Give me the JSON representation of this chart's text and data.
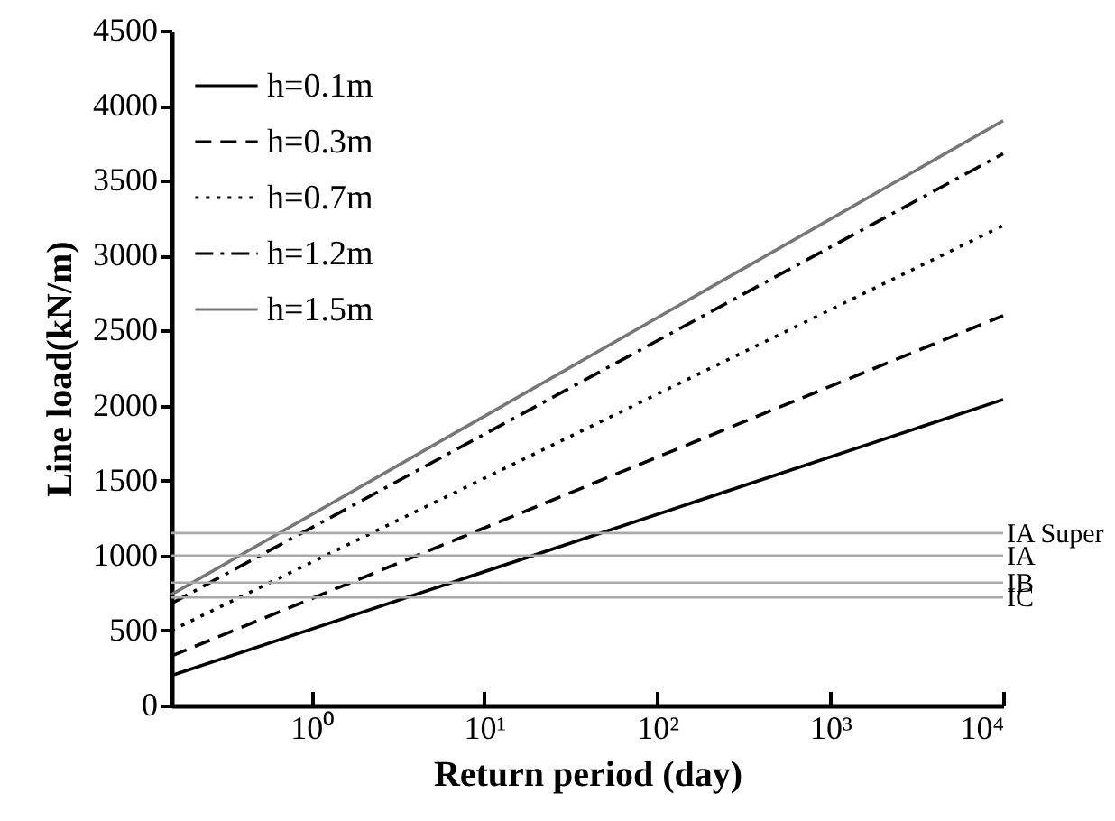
{
  "chart_data": {
    "type": "line",
    "xlabel": "Return period (day)",
    "ylabel": "Line load(kN/m)",
    "log": "x",
    "xlim": [
      0.155,
      10000
    ],
    "xticks": [
      {
        "value": 1,
        "label": "10⁰"
      },
      {
        "value": 10,
        "label": "10¹"
      },
      {
        "value": 100,
        "label": "10²"
      },
      {
        "value": 1000,
        "label": "10³"
      },
      {
        "value": 10000,
        "label": "10⁴"
      }
    ],
    "x": [
      0.155,
      10000
    ],
    "ylim": [
      0,
      4500
    ],
    "yticks": [
      0,
      500,
      1000,
      1500,
      2000,
      2500,
      3000,
      3500,
      4000,
      4500
    ],
    "grid": false,
    "legend": "top left",
    "marker": "none",
    "series": [
      {
        "name": "h=0.1m",
        "color": "#000000",
        "line_style": "solid",
        "values": [
          200,
          2040
        ]
      },
      {
        "name": "h=0.3m",
        "color": "#000000",
        "line_style": "dashed",
        "values": [
          330,
          2600
        ]
      },
      {
        "name": "h=0.7m",
        "color": "#000000",
        "line_style": "dotted",
        "values": [
          500,
          3200
        ]
      },
      {
        "name": "h=1.2m",
        "color": "#000000",
        "line_style": "dashdot",
        "values": [
          680,
          3680
        ]
      },
      {
        "name": "h=1.5m",
        "color": "#777777",
        "line_style": "solid",
        "values": [
          740,
          3900
        ]
      }
    ],
    "ref_lines": [
      {
        "axis": "y",
        "value": 1150,
        "label": "IA Super",
        "color": "#aaaaaa"
      },
      {
        "axis": "y",
        "value": 1000,
        "label": "IA",
        "color": "#aaaaaa"
      },
      {
        "axis": "y",
        "value": 820,
        "label": "IB",
        "color": "#aaaaaa"
      },
      {
        "axis": "y",
        "value": 720,
        "label": "IC",
        "color": "#aaaaaa"
      }
    ]
  }
}
